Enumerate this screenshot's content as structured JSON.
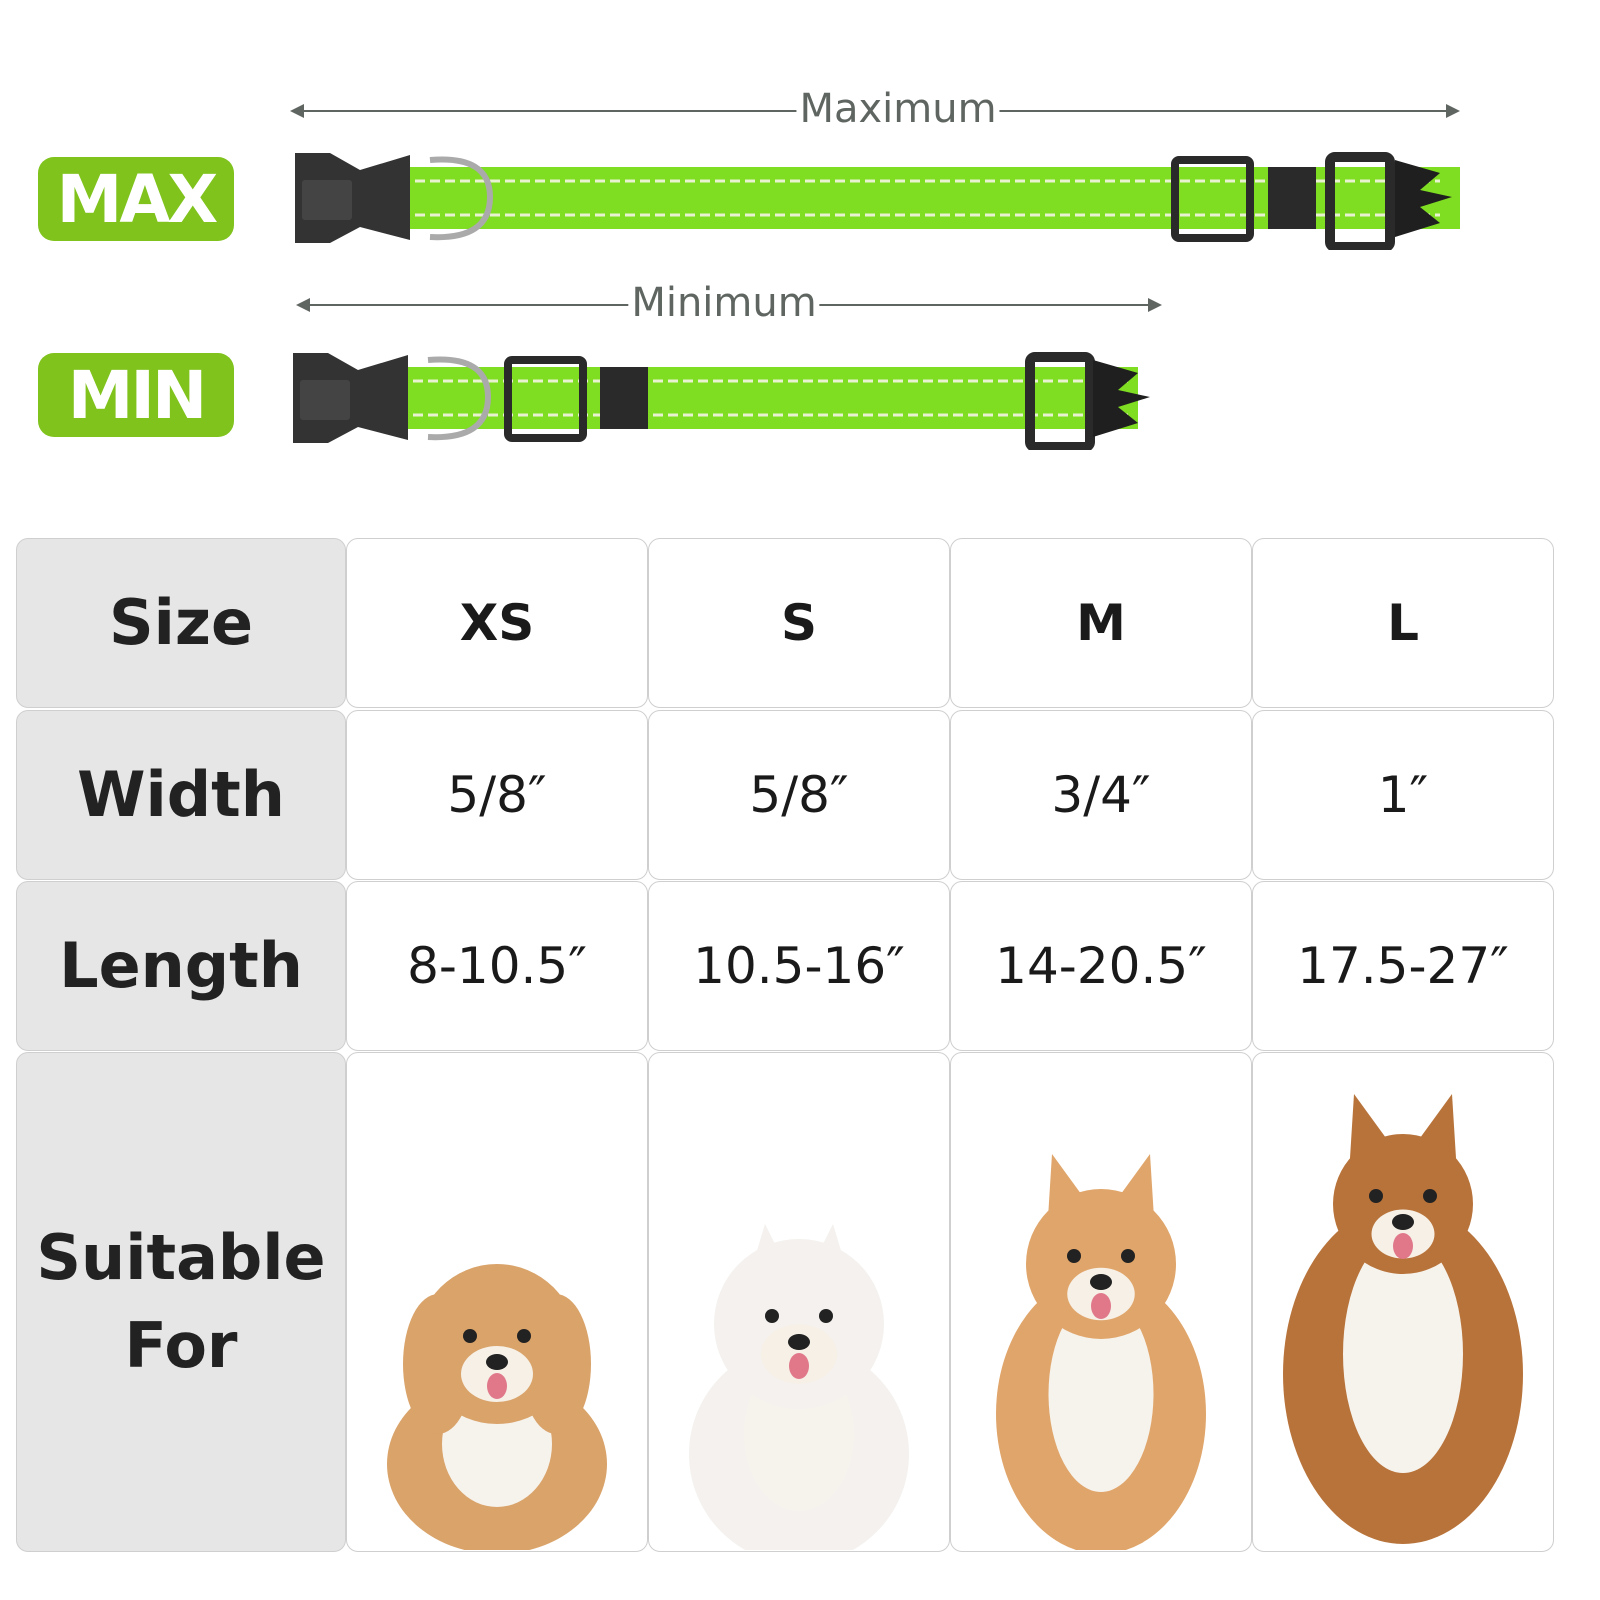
{
  "badges": {
    "max": "MAX",
    "min": "MIN",
    "color": "#7fc31c"
  },
  "arrows": {
    "maximum": "Maximum",
    "minimum": "Minimum"
  },
  "collar_color": "#7fdd22",
  "table": {
    "row_headers": [
      "Size",
      "Width",
      "Length",
      "Suitable For"
    ],
    "sizes": [
      "XS",
      "S",
      "M",
      "L"
    ],
    "widths": [
      "5/8″",
      "5/8″",
      "3/4″",
      "1″"
    ],
    "lengths": [
      "8-10.5″",
      "10.5-16″",
      "14-20.5″",
      "17.5-27″"
    ],
    "dogs": [
      {
        "icon": "maltipoo-puppy-image",
        "fur": "#d9a36a"
      },
      {
        "icon": "pomeranian-white-image",
        "fur": "#f4f1ee"
      },
      {
        "icon": "spitz-mix-image",
        "fur": "#e0a56a"
      },
      {
        "icon": "sheltie-collie-image",
        "fur": "#b8733a"
      }
    ]
  }
}
